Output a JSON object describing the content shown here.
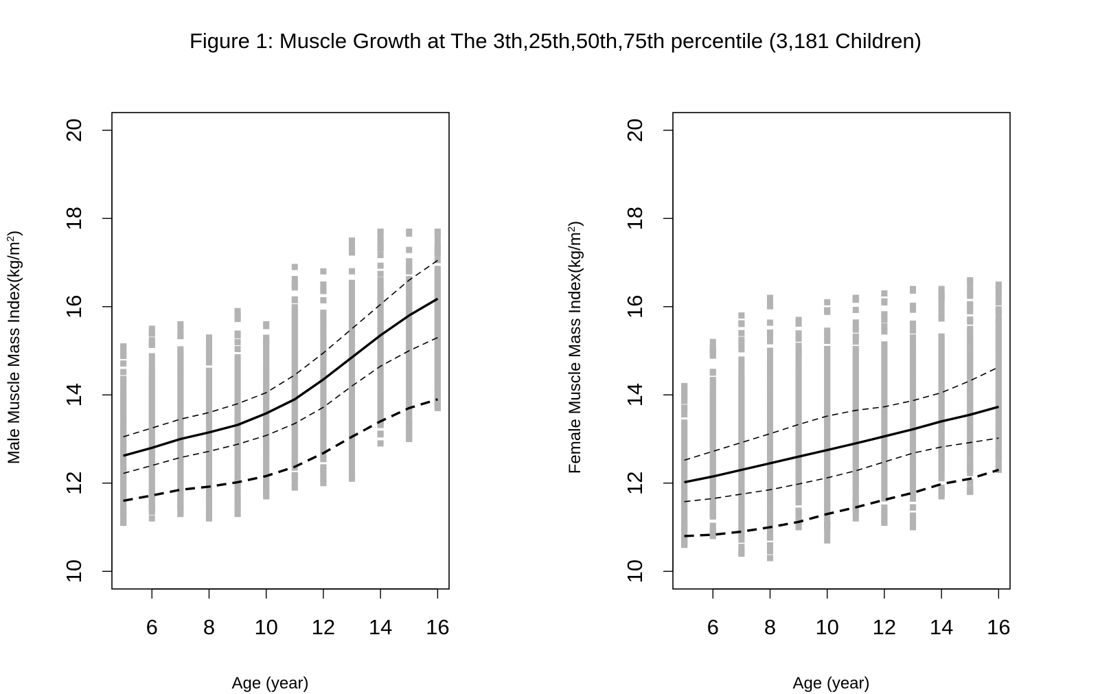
{
  "figure": {
    "title": "Figure 1: Muscle Growth at The 3th,25th,50th,75th percentile (3,181 Children)"
  },
  "colors": {
    "points": "#b3b3b3",
    "lines": "#000000",
    "axes": "#000000"
  },
  "chart_data": [
    {
      "type": "scatter",
      "xlabel": "Age (year)",
      "ylabel": "Male Muscle Mass Index(kg/m",
      "ylabel_sup": "2",
      "ylabel_tail": ")",
      "xlim": [
        4.6,
        16.4
      ],
      "ylim": [
        9.6,
        20.4
      ],
      "x_ticks": [
        6,
        8,
        10,
        12,
        14,
        16
      ],
      "y_ticks": [
        10,
        12,
        14,
        16,
        18,
        20
      ],
      "grid": false,
      "point_ranges": [
        {
          "age": 5,
          "min": 11.1,
          "max": 15.1
        },
        {
          "age": 6,
          "min": 11.2,
          "max": 15.5
        },
        {
          "age": 7,
          "min": 11.3,
          "max": 15.6
        },
        {
          "age": 8,
          "min": 11.2,
          "max": 15.3
        },
        {
          "age": 9,
          "min": 11.3,
          "max": 15.9
        },
        {
          "age": 10,
          "min": 11.7,
          "max": 15.6
        },
        {
          "age": 11,
          "min": 11.9,
          "max": 16.9
        },
        {
          "age": 12,
          "min": 12.0,
          "max": 16.8
        },
        {
          "age": 13,
          "min": 12.1,
          "max": 17.5
        },
        {
          "age": 14,
          "min": 12.9,
          "max": 17.7
        },
        {
          "age": 15,
          "min": 13.0,
          "max": 17.7
        },
        {
          "age": 16,
          "min": 13.7,
          "max": 17.7
        }
      ],
      "series": [
        {
          "style": "dashed-thin",
          "x": [
            5,
            6,
            7,
            8,
            9,
            10,
            11,
            12,
            13,
            14,
            15,
            16
          ],
          "y": [
            13.05,
            13.25,
            13.45,
            13.6,
            13.8,
            14.05,
            14.45,
            14.95,
            15.5,
            16.05,
            16.6,
            17.05
          ]
        },
        {
          "style": "solid-thick",
          "x": [
            5,
            6,
            7,
            8,
            9,
            10,
            11,
            12,
            13,
            14,
            15,
            16
          ],
          "y": [
            12.62,
            12.8,
            13.0,
            13.15,
            13.32,
            13.58,
            13.9,
            14.35,
            14.85,
            15.35,
            15.8,
            16.18
          ]
        },
        {
          "style": "dashed-thin",
          "x": [
            5,
            6,
            7,
            8,
            9,
            10,
            11,
            12,
            13,
            14,
            15,
            16
          ],
          "y": [
            12.22,
            12.4,
            12.58,
            12.72,
            12.88,
            13.08,
            13.35,
            13.72,
            14.2,
            14.65,
            15.0,
            15.3
          ]
        },
        {
          "style": "dashed-thick",
          "x": [
            5,
            6,
            7,
            8,
            9,
            10,
            11,
            12,
            13,
            14,
            15,
            16
          ],
          "y": [
            11.6,
            11.72,
            11.85,
            11.92,
            12.02,
            12.16,
            12.37,
            12.68,
            13.05,
            13.4,
            13.7,
            13.9
          ]
        }
      ]
    },
    {
      "type": "scatter",
      "xlabel": "Age (year)",
      "ylabel": "Female Muscle Mass Index(kg/m",
      "ylabel_sup": "2",
      "ylabel_tail": ")",
      "xlim": [
        4.6,
        16.4
      ],
      "ylim": [
        9.6,
        20.4
      ],
      "x_ticks": [
        6,
        8,
        10,
        12,
        14,
        16
      ],
      "y_ticks": [
        10,
        12,
        14,
        16,
        18,
        20
      ],
      "grid": false,
      "point_ranges": [
        {
          "age": 5,
          "min": 10.6,
          "max": 14.2
        },
        {
          "age": 6,
          "min": 10.8,
          "max": 15.2
        },
        {
          "age": 7,
          "min": 10.4,
          "max": 15.8
        },
        {
          "age": 8,
          "min": 10.3,
          "max": 16.2
        },
        {
          "age": 9,
          "min": 11.0,
          "max": 15.7
        },
        {
          "age": 10,
          "min": 10.7,
          "max": 16.1
        },
        {
          "age": 11,
          "min": 11.2,
          "max": 16.2
        },
        {
          "age": 12,
          "min": 11.1,
          "max": 16.3
        },
        {
          "age": 13,
          "min": 11.0,
          "max": 16.4
        },
        {
          "age": 14,
          "min": 11.7,
          "max": 16.4
        },
        {
          "age": 15,
          "min": 11.8,
          "max": 16.6
        },
        {
          "age": 16,
          "min": 12.3,
          "max": 16.5
        }
      ],
      "series": [
        {
          "style": "dashed-thin",
          "x": [
            5,
            6,
            7,
            8,
            9,
            10,
            11,
            12,
            13,
            14,
            15,
            16
          ],
          "y": [
            12.52,
            12.72,
            12.92,
            13.12,
            13.33,
            13.52,
            13.65,
            13.73,
            13.87,
            14.05,
            14.32,
            14.63
          ]
        },
        {
          "style": "solid-thick",
          "x": [
            5,
            6,
            7,
            8,
            9,
            10,
            11,
            12,
            13,
            14,
            15,
            16
          ],
          "y": [
            12.02,
            12.15,
            12.3,
            12.45,
            12.6,
            12.75,
            12.9,
            13.06,
            13.22,
            13.4,
            13.55,
            13.73
          ]
        },
        {
          "style": "dashed-thin",
          "x": [
            5,
            6,
            7,
            8,
            9,
            10,
            11,
            12,
            13,
            14,
            15,
            16
          ],
          "y": [
            11.58,
            11.65,
            11.75,
            11.85,
            11.98,
            12.12,
            12.28,
            12.48,
            12.68,
            12.82,
            12.92,
            13.02
          ]
        },
        {
          "style": "dashed-thick",
          "x": [
            5,
            6,
            7,
            8,
            9,
            10,
            11,
            12,
            13,
            14,
            15,
            16
          ],
          "y": [
            10.8,
            10.83,
            10.9,
            11.0,
            11.12,
            11.3,
            11.45,
            11.62,
            11.78,
            11.98,
            12.1,
            12.3
          ]
        }
      ]
    }
  ]
}
